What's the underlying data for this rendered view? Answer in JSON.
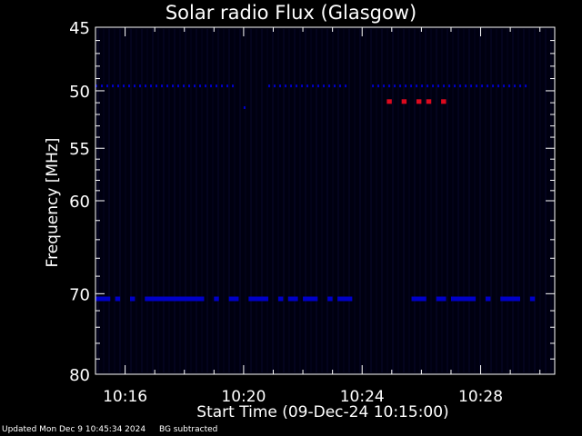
{
  "chart_data": {
    "type": "heatmap",
    "title": "Solar radio Flux (Glasgow)",
    "ylabel": "Frequency [MHz]",
    "xlabel": "Start Time (09-Dec-24 10:15:00)",
    "ylim": [
      45,
      80
    ],
    "yscale": "log",
    "yticks": [
      45,
      50,
      55,
      60,
      70,
      80
    ],
    "xlim": [
      "10:15:00",
      "10:30:30"
    ],
    "xticks": [
      "10:16",
      "10:20",
      "10:24",
      "10:28"
    ],
    "colors": {
      "background": "#000010",
      "low": "#0000c8",
      "high": "#dc0a1e",
      "frame": "#ffffff"
    },
    "features": [
      {
        "name": "band-70",
        "freq_mhz": 70.6,
        "intensity": "low",
        "spans": [
          [
            "10:15:00",
            "10:15:30"
          ],
          [
            "10:15:40",
            "10:15:50"
          ],
          [
            "10:16:10",
            "10:16:20"
          ],
          [
            "10:16:40",
            "10:18:40"
          ],
          [
            "10:19:00",
            "10:19:10"
          ],
          [
            "10:19:30",
            "10:19:50"
          ],
          [
            "10:20:10",
            "10:20:50"
          ],
          [
            "10:21:10",
            "10:21:20"
          ],
          [
            "10:21:30",
            "10:21:50"
          ],
          [
            "10:22:00",
            "10:22:30"
          ],
          [
            "10:22:50",
            "10:23:00"
          ],
          [
            "10:23:10",
            "10:23:40"
          ],
          [
            "10:25:40",
            "10:26:10"
          ],
          [
            "10:26:30",
            "10:26:50"
          ],
          [
            "10:27:00",
            "10:27:50"
          ],
          [
            "10:28:10",
            "10:28:20"
          ],
          [
            "10:28:40",
            "10:29:20"
          ],
          [
            "10:29:40",
            "10:29:50"
          ]
        ]
      },
      {
        "name": "band-49.5",
        "freq_mhz": 49.6,
        "intensity": "low",
        "spans": [
          [
            "10:15:00",
            "10:19:40"
          ],
          [
            "10:20:50",
            "10:23:30"
          ],
          [
            "10:24:20",
            "10:29:40"
          ]
        ]
      },
      {
        "name": "burst-51",
        "freq_mhz": 50.9,
        "intensity": "high",
        "spans": [
          [
            "10:24:50",
            "10:25:00"
          ],
          [
            "10:25:20",
            "10:25:30"
          ],
          [
            "10:25:50",
            "10:26:00"
          ],
          [
            "10:26:10",
            "10:26:20"
          ],
          [
            "10:26:40",
            "10:26:50"
          ]
        ]
      }
    ]
  },
  "footer": {
    "updated": "Updated Mon Dec  9 10:45:34 2024",
    "note": "BG subtracted"
  }
}
